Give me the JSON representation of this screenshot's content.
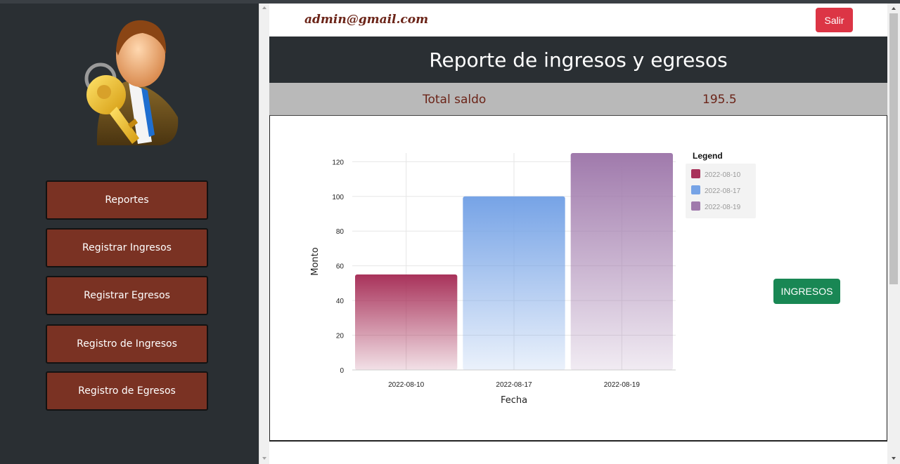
{
  "header": {
    "user_email": "admin@gmail.com",
    "logout_label": "Salir"
  },
  "sidebar": {
    "items": [
      {
        "label": "Reportes"
      },
      {
        "label": "Registrar Ingresos"
      },
      {
        "label": "Registrar Egresos"
      },
      {
        "label": "Registro de Ingresos"
      },
      {
        "label": "Registro de Egresos"
      }
    ]
  },
  "report": {
    "title": "Reporte de ingresos y egresos",
    "saldo_label": "Total saldo",
    "saldo_value": "195.5"
  },
  "actions": {
    "ingresos_label": "INGRESOS"
  },
  "colors": {
    "sidebar_bg": "#2a2f33",
    "nav_button": "#7a3223",
    "danger": "#dc3545",
    "success": "#198754",
    "accent_text": "#6b2418"
  },
  "chart_data": {
    "type": "bar",
    "categories": [
      "2022-08-10",
      "2022-08-17",
      "2022-08-19"
    ],
    "values": [
      55,
      100,
      125
    ],
    "colors": [
      "#a8325a",
      "#76a3e6",
      "#a07aac"
    ],
    "xlabel": "Fecha",
    "ylabel": "Monto",
    "ylim": [
      0,
      125
    ],
    "yticks": [
      0,
      20,
      40,
      60,
      80,
      100,
      120
    ],
    "legend_title": "Legend",
    "legend_position": "top-right",
    "grid": true
  }
}
